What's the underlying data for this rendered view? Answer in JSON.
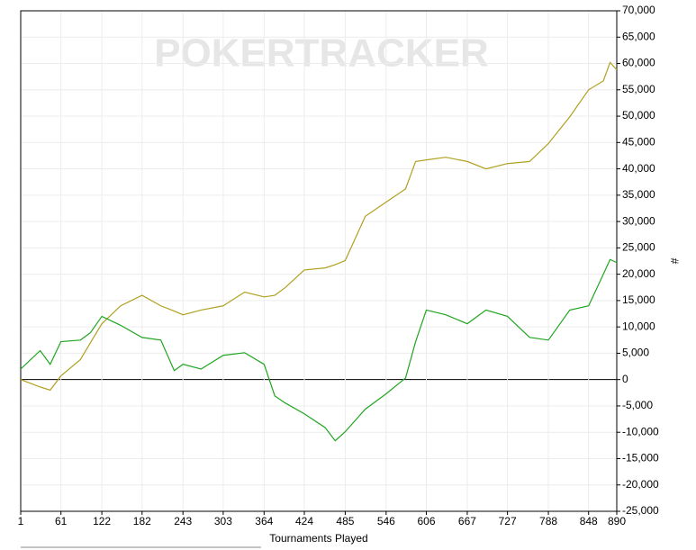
{
  "chart_data": {
    "type": "line",
    "watermark": "POKERTRACKER",
    "x_label": "Tournaments Played",
    "y_label": "#",
    "x": [
      1,
      30,
      45,
      61,
      90,
      105,
      122,
      150,
      182,
      210,
      230,
      243,
      270,
      303,
      335,
      364,
      380,
      395,
      424,
      455,
      470,
      485,
      515,
      546,
      575,
      590,
      606,
      635,
      667,
      695,
      727,
      760,
      788,
      820,
      848,
      870,
      880,
      890
    ],
    "series": [
      {
        "color": "#b0a020",
        "values": [
          0,
          -1400,
          -2000,
          700,
          3800,
          7000,
          10600,
          14000,
          16000,
          14000,
          13000,
          12300,
          13200,
          14000,
          16600,
          15700,
          16000,
          17400,
          20800,
          21200,
          21800,
          22600,
          31000,
          33700,
          36200,
          41400,
          41700,
          42200,
          41400,
          40000,
          41000,
          41400,
          44800,
          49900,
          55000,
          56700,
          60200,
          58800
        ]
      },
      {
        "color": "#1fa51f",
        "values": [
          2000,
          5500,
          2900,
          7200,
          7500,
          8900,
          12000,
          10300,
          8000,
          7500,
          1700,
          2900,
          2000,
          4600,
          5100,
          2900,
          -3100,
          -4400,
          -6500,
          -9100,
          -11600,
          -9900,
          -5600,
          -2700,
          300,
          7200,
          13200,
          12300,
          10600,
          13200,
          12000,
          8000,
          7500,
          13200,
          14000,
          20000,
          22800,
          22200
        ]
      }
    ],
    "xlim": [
      1,
      890
    ],
    "xticks": [
      1,
      61,
      122,
      182,
      243,
      303,
      364,
      424,
      485,
      546,
      606,
      667,
      727,
      788,
      848,
      890
    ],
    "ylim": [
      -25000,
      70000
    ],
    "yticks": [
      {
        "value": -25000,
        "label": "-25,000"
      },
      {
        "value": -20000,
        "label": "-20,000"
      },
      {
        "value": -15000,
        "label": "-15,000"
      },
      {
        "value": -10000,
        "label": "-10,000"
      },
      {
        "value": -5000,
        "label": "-5,000"
      },
      0,
      {
        "value": 5000,
        "label": "5,000"
      },
      {
        "value": 10000,
        "label": "10,000"
      },
      {
        "value": 15000,
        "label": "15,000"
      },
      {
        "value": 20000,
        "label": "20,000"
      },
      {
        "value": 25000,
        "label": "25,000"
      },
      {
        "value": 30000,
        "label": "30,000"
      },
      {
        "value": 35000,
        "label": "35,000"
      },
      {
        "value": 40000,
        "label": "40,000"
      },
      {
        "value": 45000,
        "label": "45,000"
      },
      {
        "value": 50000,
        "label": "50,000"
      },
      {
        "value": 55000,
        "label": "55,000"
      },
      {
        "value": 60000,
        "label": "60,000"
      },
      {
        "value": 65000,
        "label": "65,000"
      },
      {
        "value": 70000,
        "label": "70,000"
      }
    ],
    "grid": true
  }
}
